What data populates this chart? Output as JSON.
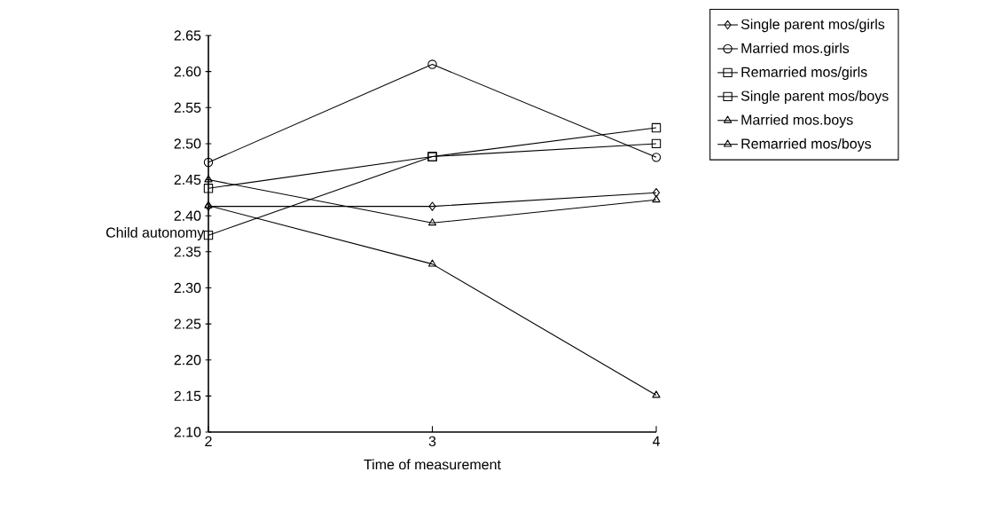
{
  "chart_data": {
    "type": "line",
    "xlabel": "Time of measurement",
    "ylabel": "Child autonomy",
    "x": [
      2,
      3,
      4
    ],
    "series": [
      {
        "name": "Single parent mos/girls",
        "color": "#000000",
        "marker": "diamond",
        "values": [
          2.413,
          2.413,
          2.432
        ]
      },
      {
        "name": "Married mos.girls",
        "color": "#000000",
        "marker": "circle",
        "values": [
          2.474,
          2.61,
          2.481
        ]
      },
      {
        "name": "Remarried mos/girls",
        "color": "#000000",
        "marker": "square",
        "values": [
          2.373,
          2.482,
          2.522
        ]
      },
      {
        "name": "Single parent mos/boys",
        "color": "#000000",
        "marker": "square",
        "values": [
          2.438,
          2.482,
          2.5
        ]
      },
      {
        "name": "Married mos.boys",
        "color": "#000000",
        "marker": "triangle",
        "values": [
          2.45,
          2.39,
          2.422
        ]
      },
      {
        "name": "Remarried mos/boys",
        "color": "#000000",
        "marker": "triangle",
        "values": [
          2.414,
          2.333,
          2.151
        ]
      }
    ],
    "xlim": [
      2,
      4
    ],
    "xticks": [
      2,
      3,
      4
    ],
    "ylim": [
      2.1,
      2.65
    ],
    "yticks": [
      {
        "value": 2.1,
        "label": "2.10"
      },
      {
        "value": 2.15,
        "label": "2.15"
      },
      {
        "value": 2.2,
        "label": "2.20"
      },
      {
        "value": 2.25,
        "label": "2.25"
      },
      {
        "value": 2.3,
        "label": "2.30"
      },
      {
        "value": 2.35,
        "label": "2.35"
      },
      {
        "value": 2.4,
        "label": "2.40"
      },
      {
        "value": 2.45,
        "label": "2.45"
      },
      {
        "value": 2.5,
        "label": "2.50"
      },
      {
        "value": 2.55,
        "label": "2.55"
      },
      {
        "value": 2.6,
        "label": "2.60"
      },
      {
        "value": 2.65,
        "label": "2.65"
      }
    ],
    "legend": "right",
    "line_style": "solid"
  }
}
